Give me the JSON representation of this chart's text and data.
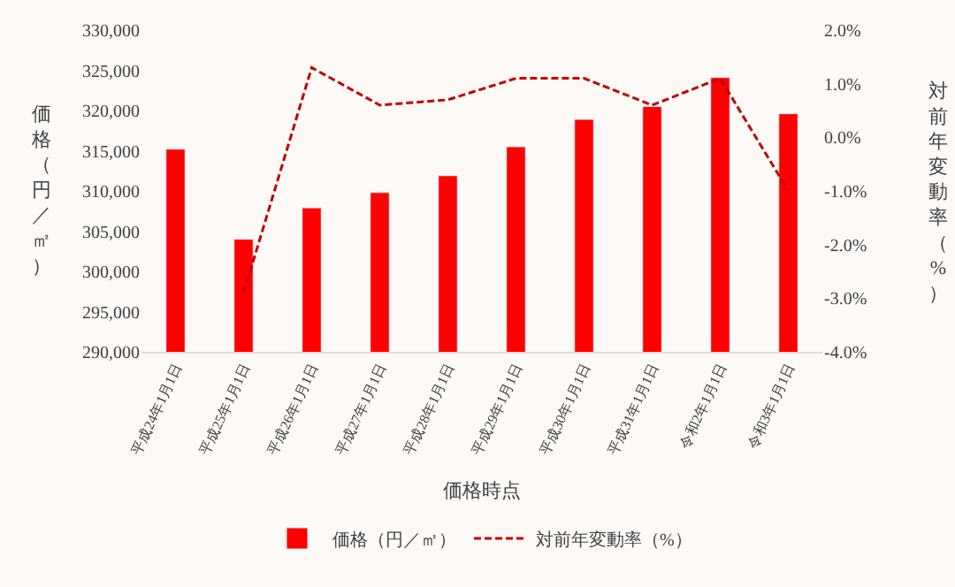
{
  "chart_data": {
    "type": "bar",
    "xlabel": "価格時点",
    "ylabel": "価格（円／㎡）",
    "y2label": "対前年変動率（%）",
    "categories": [
      "平成24年1月1日",
      "平成25年1月1日",
      "平成26年1月1日",
      "平成27年1月1日",
      "平成28年1月1日",
      "平成29年1月1日",
      "平成30年1月1日",
      "平成31年1月1日",
      "令和2年1月1日",
      "令和3年1月1日"
    ],
    "series": [
      {
        "name": "価格（円／㎡）",
        "color": "#ff0000",
        "values": [
          315200,
          304000,
          307900,
          309800,
          311900,
          315500,
          318900,
          320500,
          324100,
          319600
        ]
      },
      {
        "name": "対前年変動率（%）",
        "type": "line",
        "axis": "y2",
        "color": "#c00000",
        "line_style": "dashed",
        "marker": "none",
        "values": [
          null,
          -2.9,
          1.3,
          0.6,
          0.7,
          1.1,
          1.1,
          0.6,
          1.1,
          -1.0
        ]
      }
    ],
    "ylim": [
      290000,
      330000
    ],
    "yticks": [
      {
        "value": 290000,
        "label": "290,000"
      },
      {
        "value": 295000,
        "label": "295,000"
      },
      {
        "value": 300000,
        "label": "300,000"
      },
      {
        "value": 305000,
        "label": "305,000"
      },
      {
        "value": 310000,
        "label": "310,000"
      },
      {
        "value": 315000,
        "label": "315,000"
      },
      {
        "value": 320000,
        "label": "320,000"
      },
      {
        "value": 325000,
        "label": "325,000"
      },
      {
        "value": 330000,
        "label": "330,000"
      }
    ],
    "y2lim": [
      -4,
      2
    ],
    "y2ticks": [
      {
        "value": -4,
        "label": "-4.0%"
      },
      {
        "value": -3,
        "label": "-3.0%"
      },
      {
        "value": -2,
        "label": "-2.0%"
      },
      {
        "value": -1,
        "label": "-1.0%"
      },
      {
        "value": 0,
        "label": "0.0%"
      },
      {
        "value": 1,
        "label": "1.0%"
      },
      {
        "value": 2,
        "label": "2.0%"
      }
    ],
    "grid": false,
    "legend": "bottom"
  }
}
